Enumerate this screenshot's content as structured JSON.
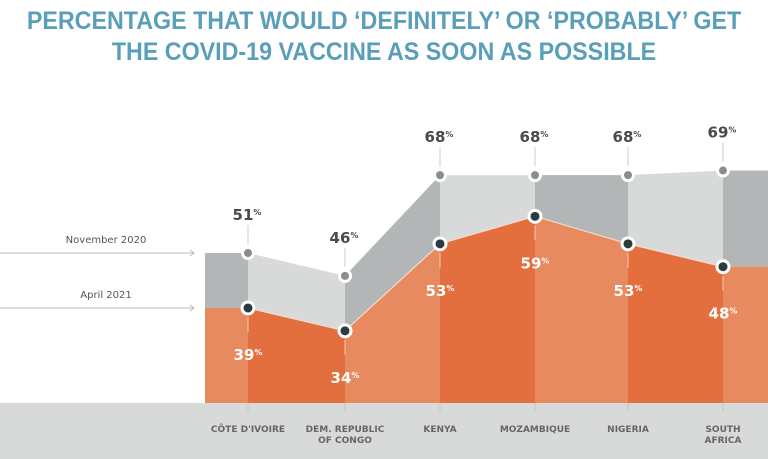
{
  "chart_data": {
    "type": "area",
    "title_lines": [
      "PERCENTAGE THAT WOULD ‘DEFINITELY’ OR ‘PROBABLY’ GET",
      "THE COVID-19 VACCINE AS SOON AS POSSIBLE"
    ],
    "categories": [
      [
        "CÔTE D'IVOIRE"
      ],
      [
        "DEM. REPUBLIC",
        "OF CONGO"
      ],
      [
        "KENYA"
      ],
      [
        "MOZAMBIQUE"
      ],
      [
        "NIGERIA"
      ],
      [
        "SOUTH",
        "AFRICA"
      ]
    ],
    "series": [
      {
        "name": "November 2020",
        "values": [
          51,
          46,
          68,
          68,
          68,
          69
        ]
      },
      {
        "name": "April 2021",
        "values": [
          39,
          34,
          53,
          59,
          53,
          48
        ]
      }
    ],
    "unit": "%",
    "xlabel": "",
    "ylabel": "",
    "legend": "left",
    "grid": false
  },
  "colors": {
    "title": "#5a9fba",
    "nov_dark": "#b3b6b7",
    "nov_light": "#d8d9d9",
    "apr_light": "#e88a5f",
    "apr_dark": "#e36f3e",
    "axis_band": "#d8d9d9",
    "nov_dot": "#8a8c8d",
    "apr_dot": "#2f3a40"
  }
}
